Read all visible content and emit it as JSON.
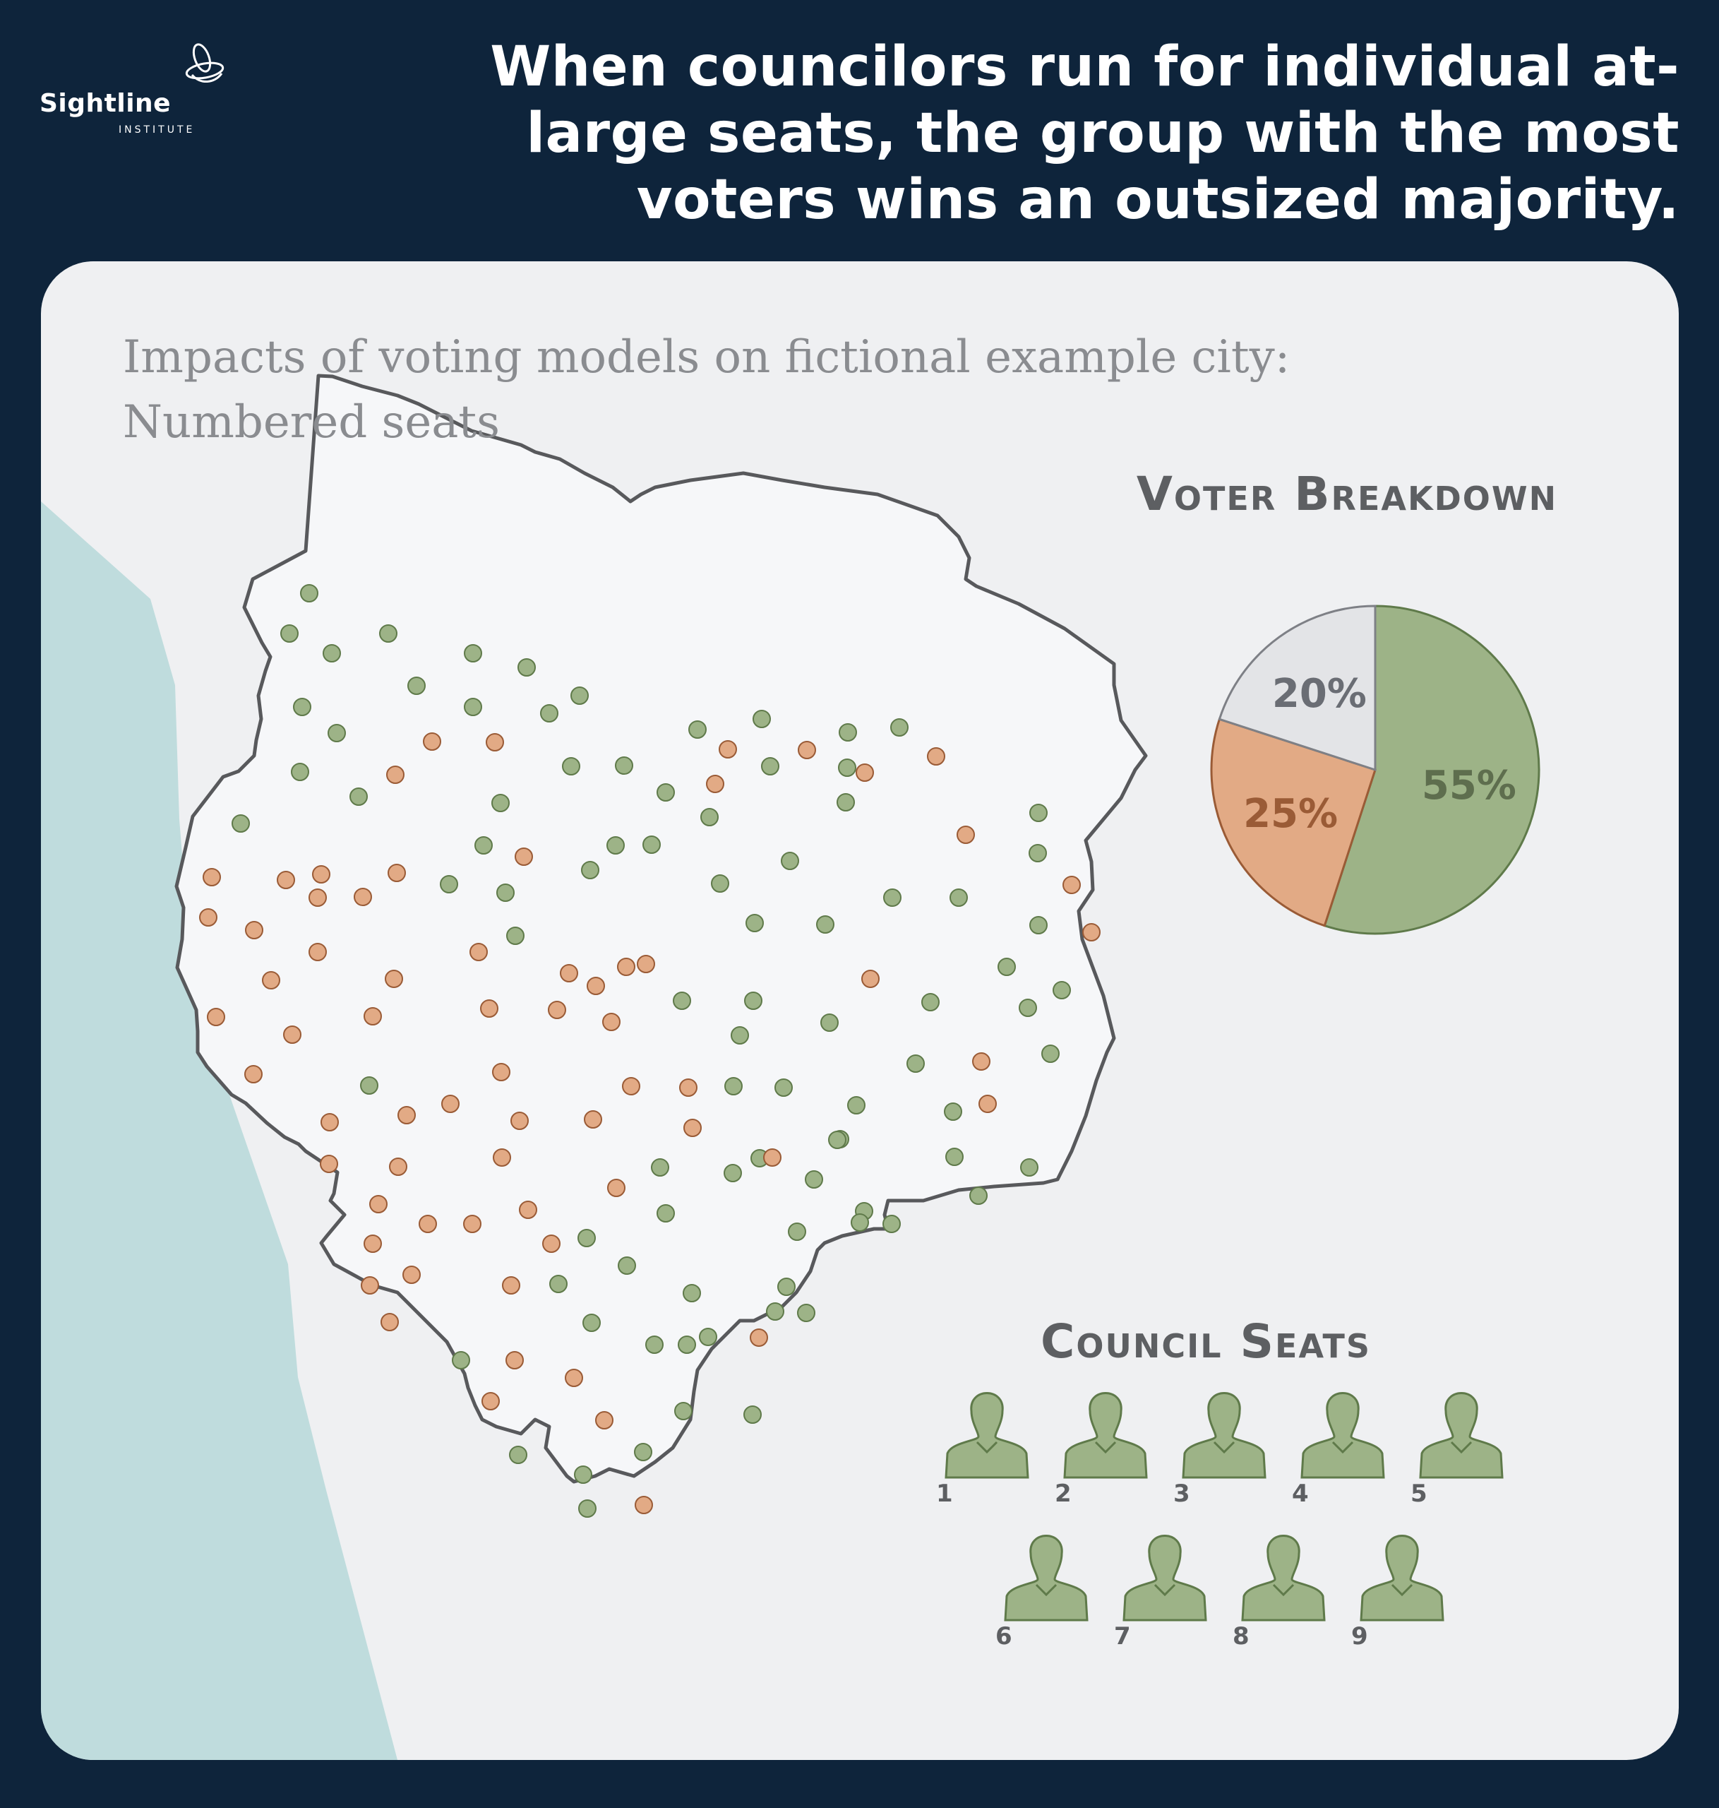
{
  "brand": {
    "name": "Sightline",
    "subname": "INSTITUTE"
  },
  "headline": "When councilors run for individual at-large seats, the group with the most voters wins an outsized majority.",
  "subtitle_line1": "Impacts of voting models on fictional example city:",
  "subtitle_line2": "Numbered seats",
  "colors": {
    "background": "#0e243b",
    "panel": "#eff0f2",
    "water": "#bfdcdd",
    "city_fill": "#f6f7f9",
    "green": "#9db387",
    "green_stroke": "#5f7a4a",
    "orange": "#e2aa85",
    "orange_stroke": "#9a5b36",
    "gray": "#e3e4e7",
    "gray_stroke": "#7e8086"
  },
  "voter_breakdown": {
    "title": "Voter Breakdown",
    "chart_data": {
      "type": "pie",
      "slices": [
        {
          "label": "55%",
          "value": 55,
          "color": "#9db387",
          "text_color": "#5e6e4e"
        },
        {
          "label": "25%",
          "value": 25,
          "color": "#e2aa85",
          "text_color": "#9a5b36"
        },
        {
          "label": "20%",
          "value": 20,
          "color": "#e3e4e7",
          "text_color": "#6a6d74"
        }
      ]
    }
  },
  "council_seats": {
    "title": "Council Seats",
    "seats": [
      {
        "number": "1",
        "color": "#9db387"
      },
      {
        "number": "2",
        "color": "#9db387"
      },
      {
        "number": "3",
        "color": "#9db387"
      },
      {
        "number": "4",
        "color": "#9db387"
      },
      {
        "number": "5",
        "color": "#9db387"
      },
      {
        "number": "6",
        "color": "#9db387"
      },
      {
        "number": "7",
        "color": "#9db387"
      },
      {
        "number": "8",
        "color": "#9db387"
      },
      {
        "number": "9",
        "color": "#9db387"
      }
    ]
  }
}
